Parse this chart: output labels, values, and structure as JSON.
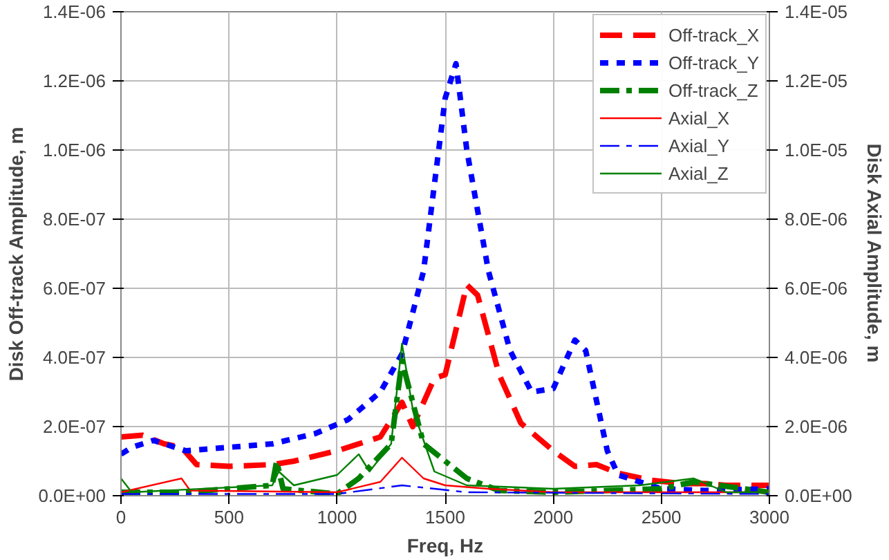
{
  "chart_data": {
    "type": "line",
    "xlabel": "Freq, Hz",
    "ylabel": "Disk Off-track Amplitude, m",
    "y2label": "Disk Axial Amplitude, m",
    "xlim": [
      0,
      3000
    ],
    "xticks": [
      0,
      500,
      1000,
      1500,
      2000,
      2500,
      3000
    ],
    "ylim": [
      0,
      1.4e-06
    ],
    "yticks": [
      {
        "value": 0,
        "label": "0.0E+00"
      },
      {
        "value": 2e-07,
        "label": "2.0E-07"
      },
      {
        "value": 4e-07,
        "label": "4.0E-07"
      },
      {
        "value": 6e-07,
        "label": "6.0E-07"
      },
      {
        "value": 8e-07,
        "label": "8.0E-07"
      },
      {
        "value": 1e-06,
        "label": "1.0E-06"
      },
      {
        "value": 1.2e-06,
        "label": "1.2E-06"
      },
      {
        "value": 1.4e-06,
        "label": "1.4E-06"
      }
    ],
    "y2lim": [
      0,
      1.4e-05
    ],
    "y2ticks": [
      {
        "value": 0,
        "label": "0.0E+00"
      },
      {
        "value": 2e-06,
        "label": "2.0E-06"
      },
      {
        "value": 4e-06,
        "label": "4.0E-06"
      },
      {
        "value": 6e-06,
        "label": "6.0E-06"
      },
      {
        "value": 8e-06,
        "label": "8.0E-06"
      },
      {
        "value": 1e-05,
        "label": "1.0E-05"
      },
      {
        "value": 1.2e-05,
        "label": "1.2E-05"
      },
      {
        "value": 1.4e-05,
        "label": "1.4E-05"
      }
    ],
    "grid": true,
    "legend": "top right",
    "series": [
      {
        "name": "Off-track_X",
        "color": "#ff0000",
        "line_style": "dashed",
        "x": [
          0,
          100,
          200,
          280,
          350,
          500,
          700,
          800,
          1000,
          1200,
          1300,
          1350,
          1450,
          1500,
          1600,
          1650,
          1750,
          1850,
          2000,
          2100,
          2200,
          2300,
          2450,
          2600,
          2700,
          2800,
          3000
        ],
        "values": [
          1.7e-07,
          1.75e-07,
          1.5e-07,
          1.4e-07,
          9e-08,
          8.5e-08,
          9e-08,
          1e-07,
          1.3e-07,
          1.7e-07,
          2.7e-07,
          2e-07,
          3.4e-07,
          3.5e-07,
          6.1e-07,
          5.8e-07,
          3.5e-07,
          2.1e-07,
          1.3e-07,
          8.5e-08,
          9e-08,
          6.5e-08,
          4.5e-08,
          3.5e-08,
          3.5e-08,
          3e-08,
          3e-08
        ]
      },
      {
        "name": "Off-track_Y",
        "color": "#0000ff",
        "line_style": "dotted",
        "x": [
          0,
          50,
          150,
          300,
          500,
          700,
          900,
          1050,
          1200,
          1300,
          1400,
          1500,
          1550,
          1600,
          1700,
          1800,
          1900,
          2000,
          2100,
          2150,
          2250,
          2300,
          2500,
          2700,
          3000
        ],
        "values": [
          1.2e-07,
          1.4e-07,
          1.6e-07,
          1.3e-07,
          1.4e-07,
          1.5e-07,
          1.8e-07,
          2.2e-07,
          3e-07,
          4.1e-07,
          6.5e-07,
          1.15e-06,
          1.25e-06,
          1e-06,
          6.5e-07,
          4.2e-07,
          3e-07,
          3.1e-07,
          4.5e-07,
          4.2e-07,
          1.3e-07,
          6e-08,
          2e-08,
          1.5e-08,
          2e-08
        ]
      },
      {
        "name": "Off-track_Z",
        "color": "#008000",
        "line_style": "dashdot",
        "x": [
          0,
          300,
          700,
          720,
          750,
          1000,
          1100,
          1250,
          1300,
          1350,
          1400,
          1500,
          1600,
          1750,
          2000,
          2500,
          2650,
          3000
        ],
        "values": [
          1e-08,
          1e-08,
          3e-08,
          1e-07,
          2e-08,
          5e-09,
          5e-08,
          1.5e-07,
          3.9e-07,
          2.7e-07,
          1.5e-07,
          1e-07,
          5e-08,
          1.5e-08,
          1e-08,
          2e-08,
          4e-08,
          1e-08
        ]
      },
      {
        "name": "Axial_X",
        "color": "#ff0000",
        "line_style": "solid",
        "axis": "y2",
        "x": [
          0,
          280,
          320,
          1000,
          1200,
          1300,
          1400,
          1500,
          1700,
          2000,
          3000
        ],
        "values": [
          1e-07,
          5e-07,
          1.5e-07,
          1e-07,
          4e-07,
          1.1e-06,
          5e-07,
          3e-07,
          2e-07,
          1e-07,
          1e-07
        ]
      },
      {
        "name": "Axial_Y",
        "color": "#0000ff",
        "line_style": "dashdot",
        "axis": "y2",
        "x": [
          0,
          1000,
          1300,
          1600,
          3000
        ],
        "values": [
          5e-08,
          5e-08,
          3e-07,
          1e-07,
          5e-08
        ]
      },
      {
        "name": "Axial_Z",
        "color": "#008000",
        "line_style": "solid",
        "axis": "y2",
        "x": [
          0,
          50,
          700,
          730,
          800,
          1000,
          1100,
          1150,
          1250,
          1300,
          1350,
          1450,
          1600,
          2000,
          2400,
          2650,
          2800,
          3000
        ],
        "values": [
          5e-07,
          1e-07,
          3e-07,
          7e-07,
          3e-07,
          6e-07,
          1.2e-06,
          7e-07,
          1.5e-06,
          4.4e-06,
          2.5e-06,
          7e-07,
          3e-07,
          2e-07,
          3e-07,
          5e-07,
          1e-07,
          1e-07
        ]
      }
    ]
  }
}
